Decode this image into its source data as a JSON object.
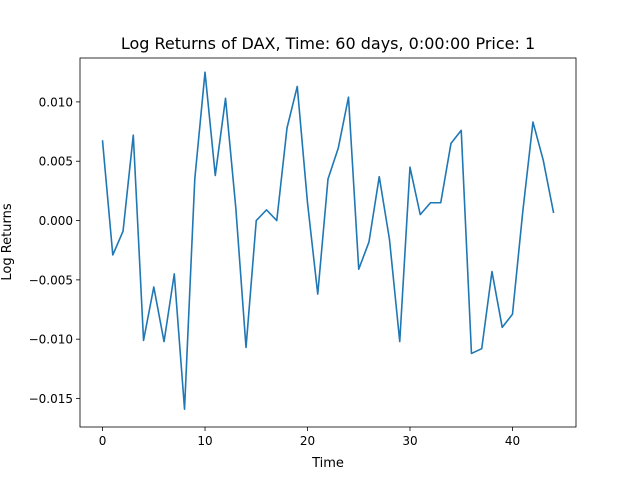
{
  "chart_data": {
    "type": "line",
    "title": "Log Returns of DAX, Time: 60 days, 0:00:00 Price: 1",
    "xlabel": "Time",
    "ylabel": "Log Returns",
    "xlim": [
      -2.2,
      46.2
    ],
    "ylim": [
      -0.0174,
      0.0137
    ],
    "xticks": [
      0,
      10,
      20,
      30,
      40
    ],
    "xtick_labels": [
      "0",
      "10",
      "20",
      "30",
      "40"
    ],
    "yticks": [
      -0.015,
      -0.01,
      -0.005,
      0.0,
      0.005,
      0.01
    ],
    "ytick_labels": [
      "−0.015",
      "−0.010",
      "−0.005",
      "0.000",
      "0.005",
      "0.010"
    ],
    "grid": false,
    "series": [
      {
        "color": "#1f77b4",
        "x": [
          0,
          1,
          2,
          3,
          4,
          5,
          6,
          7,
          8,
          9,
          10,
          11,
          12,
          13,
          14,
          15,
          16,
          17,
          18,
          19,
          20,
          21,
          22,
          23,
          24,
          25,
          26,
          27,
          28,
          29,
          30,
          31,
          32,
          33,
          34,
          35,
          36,
          37,
          38,
          39,
          40,
          41,
          42,
          43,
          44
        ],
        "y": [
          0.0067,
          -0.0029,
          -0.0009,
          0.0072,
          -0.0101,
          -0.0056,
          -0.0102,
          -0.0045,
          -0.0159,
          0.0035,
          0.0125,
          0.0038,
          0.0103,
          0.0011,
          -0.0107,
          0.0,
          0.0009,
          0.0,
          0.0078,
          0.0113,
          0.0015,
          -0.0062,
          0.0035,
          0.0061,
          0.0104,
          -0.0041,
          -0.0018,
          0.0037,
          -0.0016,
          -0.0102,
          0.0045,
          0.0005,
          0.0015,
          0.0015,
          0.0065,
          0.0076,
          -0.0112,
          -0.0108,
          -0.0043,
          -0.009,
          -0.0079,
          0.0007,
          0.0083,
          0.0051,
          0.0007
        ]
      }
    ]
  }
}
